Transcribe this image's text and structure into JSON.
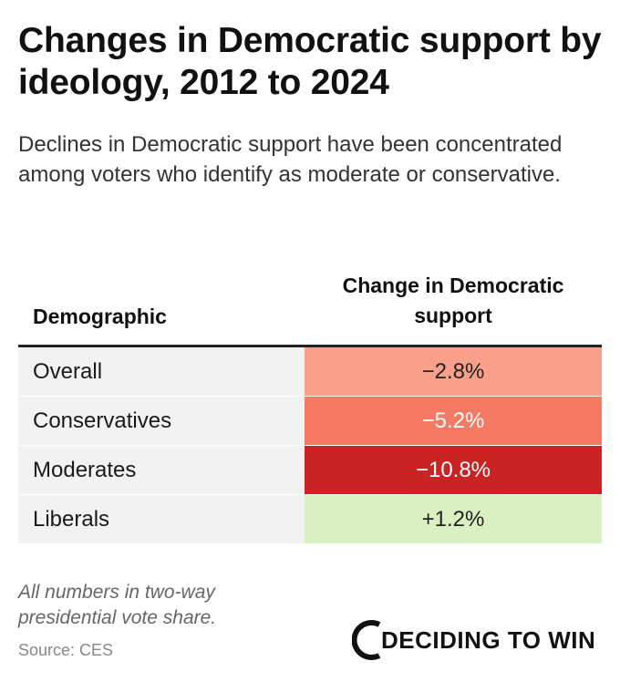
{
  "title": "Changes in Democratic support by ideology, 2012 to 2024",
  "subtitle": "Declines in Democratic support have been concentrated among voters who identify as moderate or conservative.",
  "table": {
    "col_demographic": "Demographic",
    "col_change": "Change in Democratic support"
  },
  "chart_data": {
    "type": "table",
    "title": "Changes in Democratic support by ideology, 2012 to 2024",
    "columns": [
      "Demographic",
      "Change in Democratic support"
    ],
    "rows": [
      {
        "label": "Overall",
        "value": -2.8,
        "display": "−2.8%",
        "fill": "#f9a08a",
        "text_color": "#222222"
      },
      {
        "label": "Conservatives",
        "value": -5.2,
        "display": "−5.2%",
        "fill": "#f57a63",
        "text_color": "#ffffff"
      },
      {
        "label": "Moderates",
        "value": -10.8,
        "display": "−10.8%",
        "fill": "#c92423",
        "text_color": "#ffffff"
      },
      {
        "label": "Liberals",
        "value": 1.2,
        "display": "+1.2%",
        "fill": "#d9f0c2",
        "text_color": "#222222"
      }
    ]
  },
  "footnote": "All numbers in two-way presidential vote share.",
  "source": "Source: CES",
  "logo": {
    "text": "DECIDING TO WIN",
    "icon": "deciding-to-win-logo-icon"
  }
}
